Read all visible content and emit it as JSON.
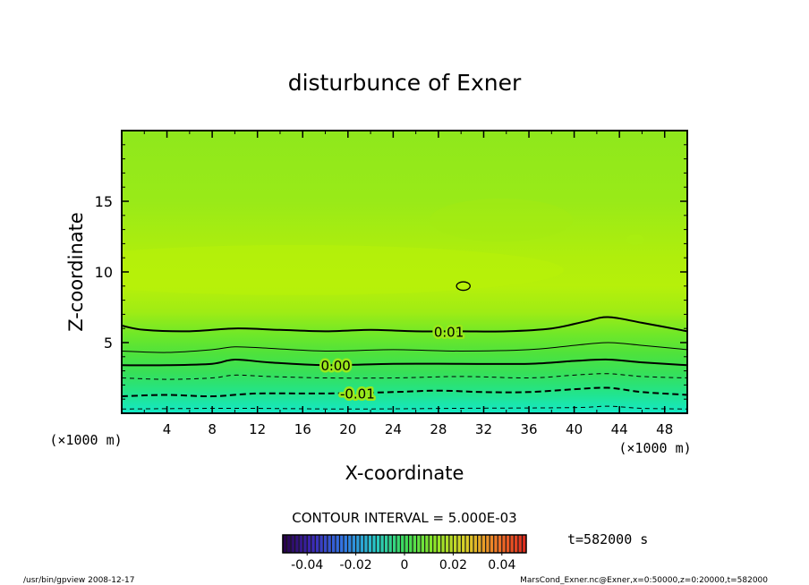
{
  "chart_data": {
    "type": "contour",
    "title": "disturbunce of Exner",
    "xlabel": "X-coordinate",
    "ylabel": "Z-coordinate",
    "x_unit": "(×1000 m)",
    "y_unit": "(×1000 m)",
    "xlim": [
      0,
      50
    ],
    "ylim": [
      0,
      20
    ],
    "x_ticks": [
      4,
      8,
      12,
      16,
      20,
      24,
      28,
      32,
      36,
      40,
      44,
      48
    ],
    "y_ticks": [
      5,
      10,
      15
    ],
    "contour_interval_text": "CONTOUR INTERVAL = 5.000E-03",
    "contour_levels": [
      {
        "value": 0.01,
        "label": "0.01",
        "style": "solid-thick",
        "z": [
          [
            0,
            6.2
          ],
          [
            2,
            5.9
          ],
          [
            6,
            5.8
          ],
          [
            10,
            6.0
          ],
          [
            14,
            5.9
          ],
          [
            18,
            5.8
          ],
          [
            22,
            5.9
          ],
          [
            26,
            5.8
          ],
          [
            30,
            5.8
          ],
          [
            34,
            5.8
          ],
          [
            38,
            6.0
          ],
          [
            41,
            6.5
          ],
          [
            43,
            6.8
          ],
          [
            46,
            6.4
          ],
          [
            50,
            5.8
          ]
        ]
      },
      {
        "value": 0.005,
        "label": "",
        "style": "solid-thin",
        "z": [
          [
            0,
            4.4
          ],
          [
            4,
            4.3
          ],
          [
            8,
            4.5
          ],
          [
            10,
            4.7
          ],
          [
            13,
            4.6
          ],
          [
            18,
            4.4
          ],
          [
            24,
            4.5
          ],
          [
            30,
            4.4
          ],
          [
            36,
            4.5
          ],
          [
            40,
            4.8
          ],
          [
            43,
            5.0
          ],
          [
            46,
            4.8
          ],
          [
            50,
            4.5
          ]
        ]
      },
      {
        "value": 0.0,
        "label": "0.00",
        "style": "solid-thick",
        "z": [
          [
            0,
            3.4
          ],
          [
            4,
            3.4
          ],
          [
            8,
            3.5
          ],
          [
            10,
            3.8
          ],
          [
            13,
            3.6
          ],
          [
            18,
            3.4
          ],
          [
            24,
            3.5
          ],
          [
            30,
            3.5
          ],
          [
            36,
            3.5
          ],
          [
            40,
            3.7
          ],
          [
            43,
            3.8
          ],
          [
            46,
            3.6
          ],
          [
            50,
            3.4
          ]
        ]
      },
      {
        "value": -0.005,
        "label": "",
        "style": "dashed-thin",
        "z": [
          [
            0,
            2.5
          ],
          [
            4,
            2.4
          ],
          [
            8,
            2.5
          ],
          [
            10,
            2.7
          ],
          [
            13,
            2.6
          ],
          [
            18,
            2.5
          ],
          [
            24,
            2.5
          ],
          [
            30,
            2.6
          ],
          [
            36,
            2.5
          ],
          [
            40,
            2.7
          ],
          [
            43,
            2.8
          ],
          [
            46,
            2.6
          ],
          [
            50,
            2.5
          ]
        ]
      },
      {
        "value": -0.01,
        "label": "-0.01",
        "style": "dashed-thick",
        "z": [
          [
            0,
            1.2
          ],
          [
            4,
            1.3
          ],
          [
            8,
            1.2
          ],
          [
            12,
            1.4
          ],
          [
            18,
            1.4
          ],
          [
            24,
            1.5
          ],
          [
            28,
            1.6
          ],
          [
            32,
            1.5
          ],
          [
            36,
            1.5
          ],
          [
            40,
            1.7
          ],
          [
            43,
            1.8
          ],
          [
            46,
            1.5
          ],
          [
            50,
            1.3
          ]
        ]
      },
      {
        "value": -0.015,
        "label": "",
        "style": "dashed-thin",
        "z": [
          [
            0,
            0.3
          ],
          [
            10,
            0.35
          ],
          [
            20,
            0.3
          ],
          [
            30,
            0.35
          ],
          [
            40,
            0.4
          ],
          [
            43,
            0.5
          ],
          [
            46,
            0.35
          ],
          [
            50,
            0.3
          ]
        ]
      }
    ],
    "closed_contour": {
      "value": 0.01,
      "center": [
        30.2,
        9.0
      ],
      "rx": 0.6,
      "rz": 0.3
    },
    "colorbar": {
      "ticks": [
        "-0.04",
        "-0.02",
        "0",
        "0.02",
        "0.04"
      ],
      "tick_values": [
        -0.04,
        -0.02,
        0,
        0.02,
        0.04
      ],
      "range": [
        -0.05,
        0.05
      ]
    },
    "time_label": "t=582000 s",
    "grid": false
  },
  "footer": {
    "left": "/usr/bin/gpview  2008-12-17",
    "right": "MarsCond_Exner.nc@Exner,x=0:50000,z=0:20000,t=582000"
  },
  "colors": {
    "top_field": "#8fe81c",
    "mid_field": "#b4f00a",
    "low_field": "#2fe050",
    "bottom_field": "#18e8b8",
    "frame": "#000000"
  }
}
